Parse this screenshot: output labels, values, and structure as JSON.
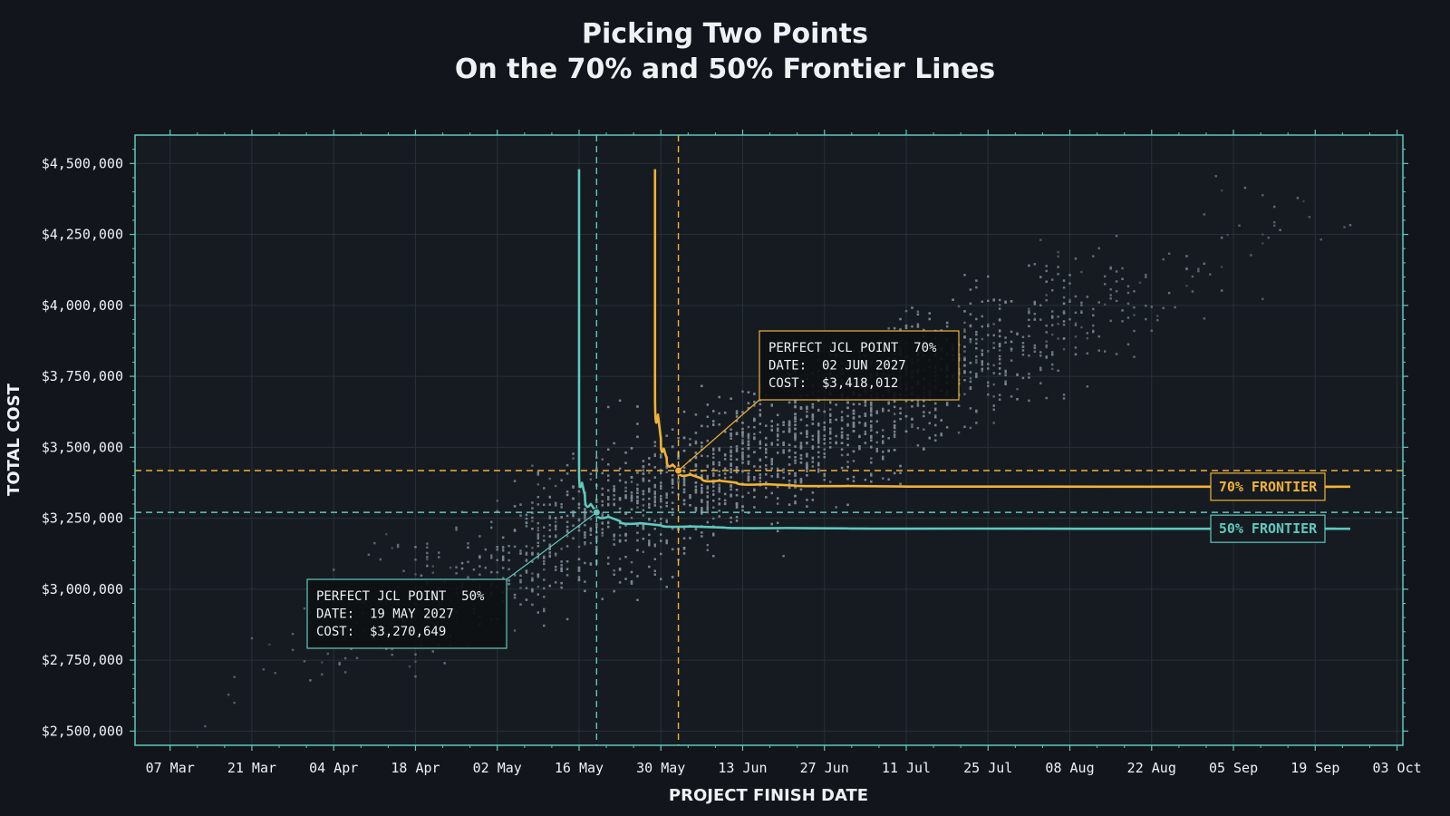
{
  "chart_data": {
    "type": "scatter",
    "title_line1": "Picking Two Points",
    "title_line2": "On the 70% and 50% Frontier Lines",
    "xlabel": "PROJECT FINISH DATE",
    "ylabel": "TOTAL COST",
    "x_ticks": [
      "07 Mar",
      "21 Mar",
      "04 Apr",
      "18 Apr",
      "02 May",
      "16 May",
      "30 May",
      "13 Jun",
      "27 Jun",
      "11 Jul",
      "25 Jul",
      "08 Aug",
      "22 Aug",
      "05 Sep",
      "19 Sep",
      "03 Oct"
    ],
    "y_ticks": [
      "$2,500,000",
      "$2,750,000",
      "$3,000,000",
      "$3,250,000",
      "$3,500,000",
      "$3,750,000",
      "$4,000,000",
      "$4,250,000",
      "$4,500,000"
    ],
    "xlim": [
      "2027-03-01",
      "2027-10-04"
    ],
    "ylim": [
      2450000,
      4600000
    ],
    "grid": true,
    "colors": {
      "background": "#12161c",
      "plot_bg": "#161b21",
      "axis": "#5fc9bf",
      "p70": "#f2b234",
      "p50": "#5fc9bf",
      "points": "#7a8694"
    },
    "frontiers": [
      {
        "name": "70% FRONTIER",
        "color": "#f2b234",
        "points": [
          [
            "2027-05-29",
            4480000
          ],
          [
            "2027-05-29",
            3900000
          ],
          [
            "2027-05-29",
            3700000
          ],
          [
            "2027-05-30",
            3530000
          ],
          [
            "2027-05-31",
            3460000
          ],
          [
            "2027-06-02",
            3418012
          ],
          [
            "2027-06-06",
            3390000
          ],
          [
            "2027-06-12",
            3375000
          ],
          [
            "2027-06-22",
            3365000
          ],
          [
            "2027-07-10",
            3362000
          ],
          [
            "2027-08-15",
            3361000
          ],
          [
            "2027-09-25",
            3361000
          ]
        ],
        "jcl_point": {
          "label": "PERFECT JCL POINT  70%",
          "date_text": "DATE:  02 JUN 2027",
          "cost_text": "COST:  $3,418,012",
          "date": "2027-06-02",
          "cost": 3418012
        }
      },
      {
        "name": "50% FRONTIER",
        "color": "#5fc9bf",
        "points": [
          [
            "2027-05-16",
            4480000
          ],
          [
            "2027-05-16",
            3700000
          ],
          [
            "2027-05-16",
            3420000
          ],
          [
            "2027-05-17",
            3330000
          ],
          [
            "2027-05-19",
            3270649
          ],
          [
            "2027-05-23",
            3240000
          ],
          [
            "2027-05-30",
            3225000
          ],
          [
            "2027-06-10",
            3217000
          ],
          [
            "2027-07-01",
            3214000
          ],
          [
            "2027-08-10",
            3213000
          ],
          [
            "2027-09-25",
            3213000
          ]
        ],
        "jcl_point": {
          "label": "PERFECT JCL POINT  50%",
          "date_text": "DATE:  19 MAY 2027",
          "cost_text": "COST:  $3,270,649",
          "date": "2027-05-19",
          "cost": 3270649
        }
      }
    ],
    "cloud": {
      "description_points": "simulated project outcomes (Monte Carlo) trending from ~(Mar, $2.6M) to ~(Sep, $4.3M)",
      "start": [
        "2027-03-15",
        2650000
      ],
      "end": [
        "2027-09-20",
        4350000
      ],
      "count": 4200
    }
  }
}
